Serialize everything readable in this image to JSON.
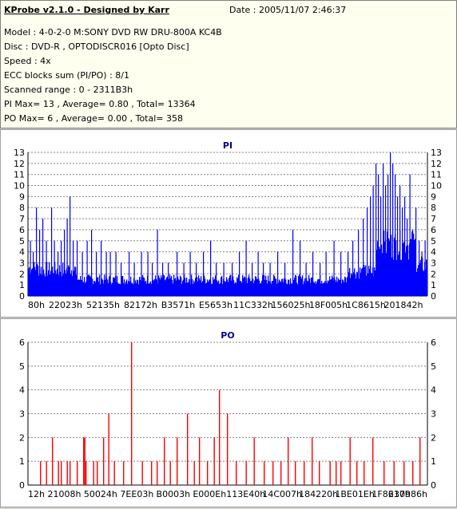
{
  "info": {
    "app_title": "KProbe v2.1.0 - Designed by Karr",
    "date": "Date : 2005/11/07 2:46:37",
    "lines": [
      "Model : 4-0-2-0 M:SONY    DVD RW DRU-800A  KC4B",
      "Disc : DVD-R , OPTODISCR016 [Opto Disc]",
      "Speed : 4x",
      "ECC blocks sum (PI/PO) : 8/1",
      "Scanned range : 0 - 2311B3h",
      "PI Max= 13 , Average= 0.80 , Total= 13364",
      "PO Max= 6 , Average= 0.00 , Total= 358"
    ]
  },
  "colors": {
    "pi": "#0000ff",
    "po": "#ff0000",
    "grid": "#808080",
    "title": "#00008b"
  },
  "chart_data": [
    {
      "type": "bar",
      "title": "PI",
      "ylim": [
        0,
        13
      ],
      "yticks": [
        0,
        1,
        2,
        3,
        4,
        5,
        6,
        7,
        8,
        9,
        10,
        11,
        12,
        13
      ],
      "xticks": [
        "80h",
        "22023h",
        "52135h",
        "82172h",
        "B3571h",
        "E5653h",
        "11C332h",
        "156025h",
        "18F005h",
        "1C8615h",
        "201842h"
      ],
      "grid": true,
      "bins": 500,
      "base": {
        "segments": [
          {
            "from": 0.0,
            "to": 0.03,
            "v": 2.5
          },
          {
            "from": 0.03,
            "to": 0.12,
            "v": 2.4
          },
          {
            "from": 0.12,
            "to": 0.8,
            "v": 1.5
          },
          {
            "from": 0.8,
            "to": 0.87,
            "v": 2.2
          },
          {
            "from": 0.87,
            "to": 0.97,
            "v": 4.6
          },
          {
            "from": 0.97,
            "to": 1.0,
            "v": 2.8
          }
        ]
      },
      "spikes": [
        [
          0.005,
          5
        ],
        [
          0.012,
          4
        ],
        [
          0.02,
          8
        ],
        [
          0.028,
          6
        ],
        [
          0.036,
          7
        ],
        [
          0.045,
          5
        ],
        [
          0.058,
          8
        ],
        [
          0.065,
          5
        ],
        [
          0.074,
          4
        ],
        [
          0.082,
          5
        ],
        [
          0.09,
          6
        ],
        [
          0.097,
          7
        ],
        [
          0.104,
          9
        ],
        [
          0.112,
          5
        ],
        [
          0.122,
          5
        ],
        [
          0.135,
          4
        ],
        [
          0.147,
          5
        ],
        [
          0.158,
          6
        ],
        [
          0.17,
          4
        ],
        [
          0.182,
          5
        ],
        [
          0.195,
          4
        ],
        [
          0.205,
          4
        ],
        [
          0.219,
          4
        ],
        [
          0.232,
          3
        ],
        [
          0.252,
          4
        ],
        [
          0.265,
          3
        ],
        [
          0.283,
          4
        ],
        [
          0.299,
          4
        ],
        [
          0.31,
          3
        ],
        [
          0.323,
          6
        ],
        [
          0.336,
          3
        ],
        [
          0.35,
          3
        ],
        [
          0.372,
          4
        ],
        [
          0.389,
          3
        ],
        [
          0.405,
          4
        ],
        [
          0.42,
          3
        ],
        [
          0.438,
          4
        ],
        [
          0.456,
          5
        ],
        [
          0.47,
          3
        ],
        [
          0.489,
          3
        ],
        [
          0.51,
          3
        ],
        [
          0.528,
          4
        ],
        [
          0.545,
          5
        ],
        [
          0.56,
          3
        ],
        [
          0.575,
          4
        ],
        [
          0.588,
          3
        ],
        [
          0.605,
          3
        ],
        [
          0.624,
          4
        ],
        [
          0.642,
          3
        ],
        [
          0.662,
          6
        ],
        [
          0.68,
          5
        ],
        [
          0.695,
          3
        ],
        [
          0.712,
          4
        ],
        [
          0.73,
          3
        ],
        [
          0.745,
          4
        ],
        [
          0.765,
          5
        ],
        [
          0.782,
          4
        ],
        [
          0.8,
          4
        ],
        [
          0.812,
          5
        ],
        [
          0.826,
          6
        ],
        [
          0.838,
          7
        ],
        [
          0.848,
          8
        ],
        [
          0.856,
          9
        ],
        [
          0.863,
          10
        ],
        [
          0.87,
          12
        ],
        [
          0.876,
          11
        ],
        [
          0.882,
          9
        ],
        [
          0.888,
          12
        ],
        [
          0.894,
          10
        ],
        [
          0.9,
          11
        ],
        [
          0.906,
          13
        ],
        [
          0.912,
          12
        ],
        [
          0.918,
          11
        ],
        [
          0.924,
          9
        ],
        [
          0.93,
          10
        ],
        [
          0.936,
          8
        ],
        [
          0.942,
          9
        ],
        [
          0.948,
          7
        ],
        [
          0.955,
          11
        ],
        [
          0.962,
          6
        ],
        [
          0.97,
          8
        ],
        [
          0.978,
          5
        ],
        [
          0.985,
          4
        ],
        [
          0.993,
          5
        ]
      ]
    },
    {
      "type": "bar",
      "title": "PO",
      "ylim": [
        0,
        6
      ],
      "yticks": [
        0,
        1,
        2,
        3,
        4,
        5,
        6
      ],
      "xticks": [
        "12h",
        "21008h",
        "50024h",
        "7EE03h",
        "B0003h",
        "E000Eh",
        "113E40h",
        "14C007h",
        "184220h",
        "1BE01Eh",
        "1F8617h",
        "230986h"
      ],
      "grid": true,
      "bars": [
        [
          0.03,
          1
        ],
        [
          0.045,
          1
        ],
        [
          0.06,
          2
        ],
        [
          0.075,
          1
        ],
        [
          0.082,
          1
        ],
        [
          0.097,
          1
        ],
        [
          0.104,
          1
        ],
        [
          0.122,
          1
        ],
        [
          0.138,
          2
        ],
        [
          0.141,
          2
        ],
        [
          0.144,
          1
        ],
        [
          0.163,
          1
        ],
        [
          0.172,
          1
        ],
        [
          0.188,
          2
        ],
        [
          0.201,
          3
        ],
        [
          0.215,
          1
        ],
        [
          0.238,
          1
        ],
        [
          0.258,
          6
        ],
        [
          0.285,
          1
        ],
        [
          0.308,
          1
        ],
        [
          0.322,
          1
        ],
        [
          0.34,
          2
        ],
        [
          0.355,
          1
        ],
        [
          0.372,
          2
        ],
        [
          0.398,
          3
        ],
        [
          0.415,
          1
        ],
        [
          0.428,
          2
        ],
        [
          0.448,
          1
        ],
        [
          0.465,
          2
        ],
        [
          0.478,
          4
        ],
        [
          0.498,
          3
        ],
        [
          0.52,
          1
        ],
        [
          0.545,
          1
        ],
        [
          0.565,
          2
        ],
        [
          0.59,
          1
        ],
        [
          0.612,
          1
        ],
        [
          0.632,
          1
        ],
        [
          0.65,
          2
        ],
        [
          0.668,
          1
        ],
        [
          0.69,
          1
        ],
        [
          0.71,
          2
        ],
        [
          0.728,
          1
        ],
        [
          0.755,
          1
        ],
        [
          0.77,
          1
        ],
        [
          0.782,
          1
        ],
        [
          0.805,
          2
        ],
        [
          0.822,
          1
        ],
        [
          0.84,
          1
        ],
        [
          0.862,
          2
        ],
        [
          0.89,
          1
        ],
        [
          0.915,
          1
        ],
        [
          0.94,
          1
        ],
        [
          0.962,
          1
        ],
        [
          0.98,
          2
        ]
      ]
    }
  ]
}
